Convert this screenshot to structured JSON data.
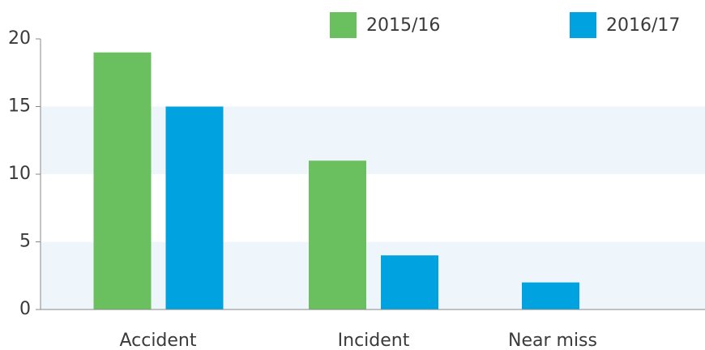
{
  "chart_data": {
    "type": "bar",
    "categories": [
      "Accident",
      "Incident",
      "Near miss"
    ],
    "series": [
      {
        "name": "2015/16",
        "color": "#6abf5e",
        "values": [
          19,
          11,
          0
        ]
      },
      {
        "name": "2016/17",
        "color": "#00a3e0",
        "values": [
          15,
          4,
          2
        ]
      }
    ],
    "ylim": [
      0,
      20
    ],
    "yticks": [
      0,
      5,
      10,
      15,
      20
    ],
    "bands": "#eef6fb",
    "legend": "top"
  }
}
